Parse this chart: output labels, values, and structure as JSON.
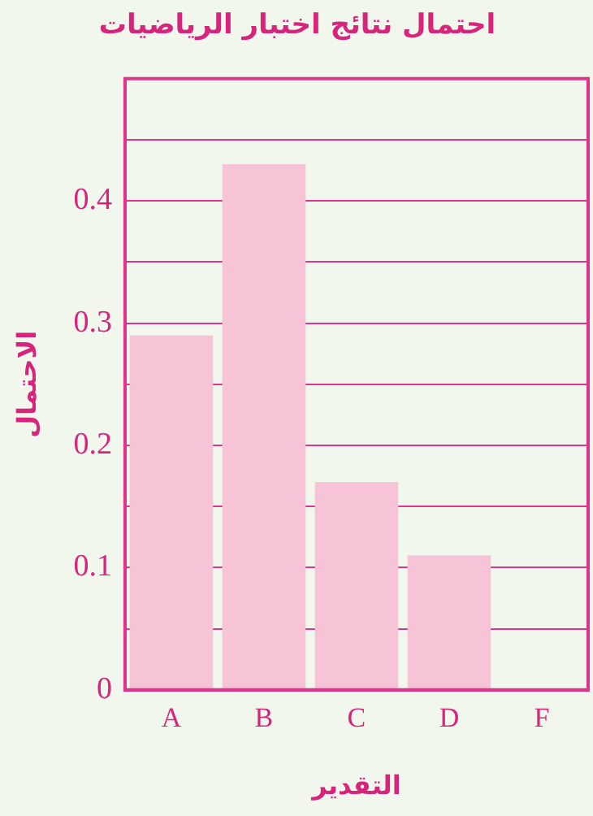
{
  "chart_data": {
    "type": "bar",
    "title": "احتمال نتائج اختبار الرياضيات",
    "xlabel": "التقدير",
    "ylabel": "الاحتمال",
    "categories": [
      "A",
      "B",
      "C",
      "D",
      "F"
    ],
    "values": [
      0.29,
      0.43,
      0.17,
      0.11,
      0
    ],
    "color": "#f7c3d6",
    "ylim": [
      0,
      0.5
    ],
    "yticks": [
      0,
      {
        "value": 0.05,
        "label": null
      },
      0.1,
      {
        "value": 0.15,
        "label": null
      },
      0.2,
      {
        "value": 0.25,
        "label": null
      },
      0.3,
      {
        "value": 0.35,
        "label": null
      },
      0.4,
      {
        "value": 0.45,
        "label": null
      },
      {
        "value": 0.5,
        "label": null
      }
    ],
    "grid": "y",
    "legend": false
  }
}
